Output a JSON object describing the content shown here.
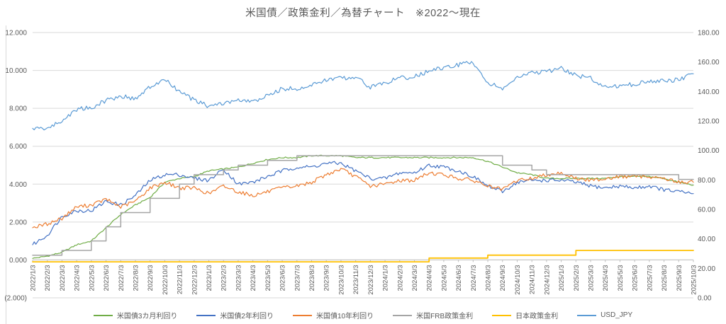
{
  "chart_data": {
    "type": "line",
    "title": "米国債／政策金利／為替チャート　※2022～現在",
    "legend_position": "bottom",
    "grid": true,
    "left_axis": {
      "min": -2,
      "max": 12,
      "step": 2,
      "labels": [
        "12.000",
        "10.000",
        "8.000",
        "6.000",
        "4.000",
        "2.000",
        "0.000",
        "(2.000)"
      ],
      "negative_color": "#f0564e",
      "text_color": "#595959"
    },
    "right_axis": {
      "min": 0,
      "max": 180,
      "step": 20,
      "labels": [
        "180.00",
        "160.00",
        "140.00",
        "120.00",
        "100.00",
        "80.00",
        "60.00",
        "40.00",
        "20.00",
        "0.00"
      ],
      "text_color": "#595959"
    },
    "x": [
      "2022/1/3",
      "2022/2/3",
      "2022/3/3",
      "2022/4/3",
      "2022/5/3",
      "2022/6/3",
      "2022/7/3",
      "2022/8/3",
      "2022/9/3",
      "2022/10/3",
      "2022/11/3",
      "2022/12/3",
      "2023/1/3",
      "2023/2/3",
      "2023/3/3",
      "2023/4/3",
      "2023/5/3",
      "2023/6/3",
      "2023/7/3",
      "2023/8/3",
      "2023/9/3",
      "2023/10/3",
      "2023/11/3",
      "2023/12/3",
      "2024/1/3",
      "2024/2/3",
      "2024/3/3",
      "2024/4/3",
      "2024/5/3",
      "2024/6/3",
      "2024/7/3",
      "2024/8/3",
      "2024/9/3",
      "2024/10/3",
      "2024/11/3",
      "2024/12/3",
      "2025/1/3",
      "2025/2/3",
      "2025/3/3",
      "2025/4/3",
      "2025/5/3",
      "2025/6/3",
      "2025/7/3",
      "2025/8/3",
      "2025/9/3",
      "2025/10/3"
    ],
    "series": [
      {
        "name": "米国債3カ月利回り",
        "axis": "left",
        "color": "#70AD47",
        "style": "noisy",
        "width": 1.2,
        "noise": 0.035,
        "values": [
          0.08,
          0.2,
          0.4,
          0.8,
          1.0,
          1.7,
          2.4,
          2.9,
          3.3,
          4.1,
          4.3,
          4.4,
          4.7,
          4.8,
          4.9,
          5.1,
          5.3,
          5.4,
          5.4,
          5.5,
          5.5,
          5.5,
          5.4,
          5.4,
          5.4,
          5.4,
          5.4,
          5.4,
          5.4,
          5.4,
          5.4,
          5.2,
          4.9,
          4.6,
          4.5,
          4.3,
          4.3,
          4.3,
          4.3,
          4.3,
          4.4,
          4.4,
          4.4,
          4.3,
          4.1,
          3.95
        ]
      },
      {
        "name": "米国債2年利回り",
        "axis": "left",
        "color": "#4472C4",
        "style": "noisy",
        "width": 1.2,
        "noise": 0.1,
        "values": [
          0.8,
          1.3,
          2.3,
          2.6,
          2.6,
          3.1,
          2.9,
          3.4,
          4.2,
          4.5,
          4.5,
          4.3,
          4.2,
          4.8,
          4.0,
          4.1,
          4.4,
          4.7,
          4.9,
          4.9,
          5.1,
          5.1,
          4.7,
          4.3,
          4.3,
          4.6,
          4.6,
          5.0,
          4.9,
          4.7,
          4.4,
          3.9,
          3.6,
          4.1,
          4.2,
          4.2,
          4.2,
          4.1,
          3.9,
          3.8,
          3.9,
          3.8,
          3.9,
          3.7,
          3.6,
          3.5
        ]
      },
      {
        "name": "米国債10年利回り",
        "axis": "left",
        "color": "#ED7D31",
        "style": "noisy",
        "width": 1.2,
        "noise": 0.1,
        "values": [
          1.7,
          1.9,
          2.2,
          2.8,
          2.9,
          3.2,
          2.8,
          3.1,
          3.8,
          4.1,
          3.8,
          3.8,
          3.5,
          3.9,
          3.6,
          3.4,
          3.6,
          3.8,
          3.9,
          4.1,
          4.5,
          4.8,
          4.4,
          3.9,
          4.0,
          4.2,
          4.2,
          4.6,
          4.5,
          4.3,
          4.2,
          3.9,
          3.7,
          4.2,
          4.3,
          4.5,
          4.6,
          4.3,
          4.2,
          4.3,
          4.4,
          4.4,
          4.4,
          4.3,
          4.1,
          4.1
        ]
      },
      {
        "name": "米国FRB政策金利",
        "axis": "left",
        "color": "#A5A5A5",
        "style": "step",
        "width": 1.5,
        "noise": 0,
        "values": [
          0.25,
          0.25,
          0.5,
          0.5,
          1.0,
          1.75,
          2.5,
          2.5,
          3.25,
          3.25,
          4.0,
          4.5,
          4.5,
          4.75,
          5.0,
          5.0,
          5.25,
          5.25,
          5.5,
          5.5,
          5.5,
          5.5,
          5.5,
          5.5,
          5.5,
          5.5,
          5.5,
          5.5,
          5.5,
          5.5,
          5.5,
          5.5,
          5.0,
          5.0,
          4.75,
          4.5,
          4.5,
          4.5,
          4.5,
          4.5,
          4.5,
          4.5,
          4.5,
          4.5,
          4.25,
          4.25
        ]
      },
      {
        "name": "日本政策金利",
        "axis": "left",
        "color": "#FFC000",
        "style": "step",
        "width": 1.8,
        "noise": 0,
        "values": [
          -0.1,
          -0.1,
          -0.1,
          -0.1,
          -0.1,
          -0.1,
          -0.1,
          -0.1,
          -0.1,
          -0.1,
          -0.1,
          -0.1,
          -0.1,
          -0.1,
          -0.1,
          -0.1,
          -0.1,
          -0.1,
          -0.1,
          -0.1,
          -0.1,
          -0.1,
          -0.1,
          -0.1,
          -0.1,
          -0.1,
          -0.1,
          0.1,
          0.1,
          0.1,
          0.1,
          0.25,
          0.25,
          0.25,
          0.25,
          0.25,
          0.25,
          0.5,
          0.5,
          0.5,
          0.5,
          0.5,
          0.5,
          0.5,
          0.5,
          0.5
        ]
      },
      {
        "name": "USD_JPY",
        "axis": "right",
        "color": "#5B9BD5",
        "style": "noisy",
        "width": 1.2,
        "noise": 1.5,
        "values": [
          115,
          115,
          120,
          128,
          129,
          134,
          137,
          135,
          143,
          148,
          140,
          134,
          130,
          132,
          134,
          133,
          137,
          142,
          142,
          144,
          148,
          149,
          150,
          143,
          146,
          149,
          150,
          154,
          156,
          158,
          160,
          146,
          142,
          149,
          153,
          153,
          156,
          151,
          149,
          143,
          144,
          145,
          147,
          147,
          148,
          152
        ]
      }
    ],
    "gridline_color": "#D9D9D9",
    "axis_line_color": "#BFBFBF"
  }
}
